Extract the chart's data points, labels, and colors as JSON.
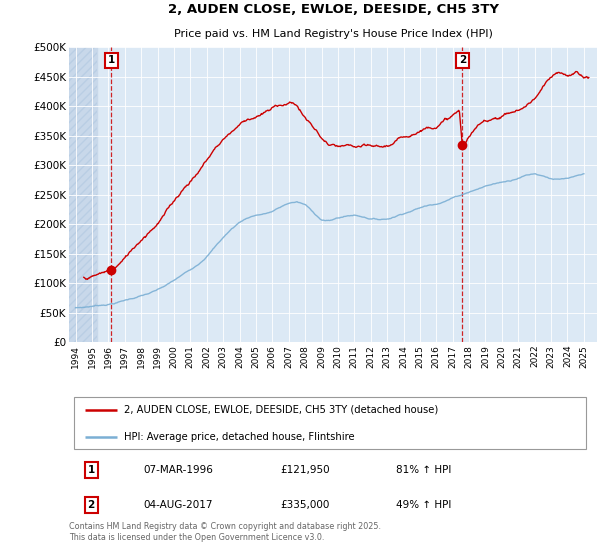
{
  "title": "2, AUDEN CLOSE, EWLOE, DEESIDE, CH5 3TY",
  "subtitle": "Price paid vs. HM Land Registry's House Price Index (HPI)",
  "background_plot": "#dce9f5",
  "background_hatch": "#c8d8ea",
  "hatch_end_year": 1995.3,
  "xmin": 1993.6,
  "xmax": 2025.8,
  "ymin": 0,
  "ymax": 500000,
  "yticks": [
    0,
    50000,
    100000,
    150000,
    200000,
    250000,
    300000,
    350000,
    400000,
    450000,
    500000
  ],
  "ytick_labels": [
    "£0",
    "£50K",
    "£100K",
    "£150K",
    "£200K",
    "£250K",
    "£300K",
    "£350K",
    "£400K",
    "£450K",
    "£500K"
  ],
  "xticks": [
    1994,
    1995,
    1996,
    1997,
    1998,
    1999,
    2000,
    2001,
    2002,
    2003,
    2004,
    2005,
    2006,
    2007,
    2008,
    2009,
    2010,
    2011,
    2012,
    2013,
    2014,
    2015,
    2016,
    2017,
    2018,
    2019,
    2020,
    2021,
    2022,
    2023,
    2024,
    2025
  ],
  "sale1_year": 1996.18,
  "sale1_price": 121950,
  "sale2_year": 2017.59,
  "sale2_price": 335000,
  "sale1_label": "1",
  "sale2_label": "2",
  "red_line_color": "#cc0000",
  "blue_line_color": "#7bafd4",
  "legend_red": "2, AUDEN CLOSE, EWLOE, DEESIDE, CH5 3TY (detached house)",
  "legend_blue": "HPI: Average price, detached house, Flintshire",
  "table_row1": [
    "1",
    "07-MAR-1996",
    "£121,950",
    "81% ↑ HPI"
  ],
  "table_row2": [
    "2",
    "04-AUG-2017",
    "£335,000",
    "49% ↑ HPI"
  ],
  "footnote": "Contains HM Land Registry data © Crown copyright and database right 2025.\nThis data is licensed under the Open Government Licence v3.0.",
  "hpi_data": {
    "years": [
      1994.0,
      1994.5,
      1995.0,
      1995.5,
      1996.0,
      1996.5,
      1997.0,
      1997.5,
      1998.0,
      1998.5,
      1999.0,
      1999.5,
      2000.0,
      2000.5,
      2001.0,
      2001.5,
      2002.0,
      2002.5,
      2003.0,
      2003.5,
      2004.0,
      2004.5,
      2005.0,
      2005.5,
      2006.0,
      2006.5,
      2007.0,
      2007.5,
      2008.0,
      2008.5,
      2009.0,
      2009.5,
      2010.0,
      2010.5,
      2011.0,
      2011.5,
      2012.0,
      2012.5,
      2013.0,
      2013.5,
      2014.0,
      2014.5,
      2015.0,
      2015.5,
      2016.0,
      2016.5,
      2017.0,
      2017.5,
      2018.0,
      2018.5,
      2019.0,
      2019.5,
      2020.0,
      2020.5,
      2021.0,
      2021.5,
      2022.0,
      2022.5,
      2023.0,
      2023.5,
      2024.0,
      2024.5,
      2025.0
    ],
    "prices": [
      58000,
      59000,
      61000,
      63000,
      65000,
      68000,
      72000,
      76000,
      80000,
      84000,
      89000,
      96000,
      104000,
      113000,
      122000,
      133000,
      147000,
      163000,
      179000,
      193000,
      205000,
      213000,
      218000,
      220000,
      224000,
      231000,
      238000,
      240000,
      235000,
      222000,
      210000,
      208000,
      213000,
      216000,
      218000,
      216000,
      213000,
      212000,
      213000,
      218000,
      224000,
      229000,
      234000,
      238000,
      242000,
      247000,
      253000,
      258000,
      264000,
      269000,
      274000,
      278000,
      281000,
      284000,
      290000,
      295000,
      298000,
      295000,
      291000,
      289000,
      290000,
      292000,
      295000
    ]
  },
  "prop_data": {
    "years": [
      1994.5,
      1995.0,
      1995.5,
      1996.0,
      1996.18,
      1996.5,
      1997.0,
      1997.5,
      1998.0,
      1998.5,
      1999.0,
      1999.5,
      2000.0,
      2000.5,
      2001.0,
      2001.5,
      2002.0,
      2002.5,
      2003.0,
      2003.5,
      2004.0,
      2004.5,
      2005.0,
      2005.5,
      2006.0,
      2006.5,
      2007.0,
      2007.25,
      2007.5,
      2007.75,
      2008.0,
      2008.5,
      2009.0,
      2009.5,
      2010.0,
      2010.5,
      2011.0,
      2011.5,
      2012.0,
      2012.5,
      2013.0,
      2013.5,
      2014.0,
      2014.5,
      2015.0,
      2015.5,
      2016.0,
      2016.5,
      2017.0,
      2017.4,
      2017.59,
      2017.75,
      2018.0,
      2018.25,
      2018.5,
      2018.75,
      2019.0,
      2019.5,
      2020.0,
      2020.5,
      2021.0,
      2021.5,
      2022.0,
      2022.25,
      2022.5,
      2022.75,
      2023.0,
      2023.25,
      2023.5,
      2023.75,
      2024.0,
      2024.25,
      2024.5,
      2024.75,
      2025.0,
      2025.3
    ],
    "prices": [
      110000,
      112000,
      116000,
      120000,
      121950,
      128000,
      140000,
      158000,
      175000,
      192000,
      208000,
      225000,
      245000,
      265000,
      282000,
      298000,
      318000,
      338000,
      355000,
      368000,
      382000,
      392000,
      398000,
      402000,
      408000,
      415000,
      418000,
      420000,
      416000,
      405000,
      395000,
      378000,
      358000,
      345000,
      340000,
      338000,
      335000,
      333000,
      330000,
      328000,
      330000,
      335000,
      342000,
      350000,
      358000,
      365000,
      372000,
      380000,
      388000,
      395000,
      335000,
      340000,
      350000,
      358000,
      365000,
      370000,
      375000,
      382000,
      388000,
      393000,
      398000,
      405000,
      418000,
      425000,
      435000,
      442000,
      448000,
      452000,
      455000,
      450000,
      448000,
      452000,
      455000,
      452000,
      450000,
      448000
    ]
  }
}
